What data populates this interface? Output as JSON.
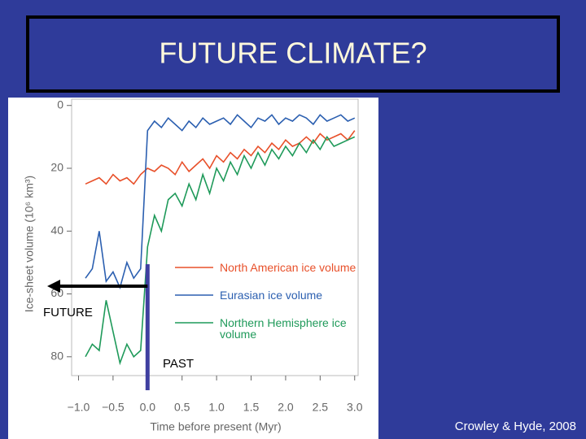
{
  "slide": {
    "title": "FUTURE CLIMATE?",
    "credit": "Crowley & Hyde, 2008"
  },
  "chart_data": {
    "type": "line",
    "x_label": "Time before present (Myr)",
    "y_label": "Ice-sheet volume (10⁶ km³)",
    "x": [
      -0.9,
      -0.8,
      -0.7,
      -0.6,
      -0.5,
      -0.4,
      -0.3,
      -0.2,
      -0.1,
      0.0,
      0.1,
      0.2,
      0.3,
      0.4,
      0.5,
      0.6,
      0.7,
      0.8,
      0.9,
      1.0,
      1.1,
      1.2,
      1.3,
      1.4,
      1.5,
      1.6,
      1.7,
      1.8,
      1.9,
      2.0,
      2.1,
      2.2,
      2.3,
      2.4,
      2.5,
      2.6,
      2.7,
      2.8,
      2.9,
      3.0
    ],
    "series": [
      {
        "name": "North American ice volume",
        "color": "#e8502a",
        "values": [
          25,
          24,
          23,
          25,
          22,
          24,
          23,
          25,
          22,
          20,
          21,
          19,
          20,
          22,
          18,
          21,
          19,
          17,
          20,
          16,
          18,
          15,
          17,
          14,
          16,
          13,
          15,
          12,
          14,
          11,
          13,
          12,
          10,
          12,
          9,
          11,
          10,
          9,
          11,
          8
        ]
      },
      {
        "name": "Eurasian ice volume",
        "color": "#2b5fb0",
        "values": [
          55,
          52,
          40,
          56,
          53,
          58,
          50,
          55,
          52,
          8,
          5,
          7,
          4,
          6,
          8,
          5,
          7,
          4,
          6,
          5,
          4,
          6,
          3,
          5,
          7,
          4,
          5,
          3,
          6,
          4,
          5,
          3,
          4,
          6,
          3,
          5,
          4,
          3,
          5,
          4
        ]
      },
      {
        "name": "Northern Hemisphere ice volume",
        "color": "#1f9a5a",
        "values": [
          80,
          76,
          78,
          62,
          72,
          82,
          76,
          80,
          78,
          45,
          35,
          40,
          30,
          28,
          32,
          25,
          30,
          22,
          28,
          20,
          24,
          18,
          22,
          16,
          20,
          15,
          19,
          14,
          17,
          13,
          16,
          12,
          15,
          11,
          14,
          10,
          13,
          12,
          11,
          10
        ]
      }
    ],
    "xlim": [
      -1.1,
      3.05
    ],
    "ylim": [
      -2,
      86
    ],
    "y_inverted": true,
    "xticks": [
      {
        "value": -1,
        "label": "−1.0"
      },
      {
        "value": -0.5,
        "label": "−0.5"
      },
      {
        "value": 0,
        "label": "0.0"
      },
      0.5,
      {
        "value": 1,
        "label": "1.0"
      },
      1.5,
      {
        "value": 2,
        "label": "2.0"
      },
      2.5,
      {
        "value": 3,
        "label": "3.0"
      }
    ],
    "yticks": [
      0,
      20,
      40,
      60,
      80
    ],
    "annotations": [
      {
        "text": "FUTURE",
        "x": -1.0
      },
      {
        "text": "PAST",
        "x": 0.0
      }
    ]
  }
}
